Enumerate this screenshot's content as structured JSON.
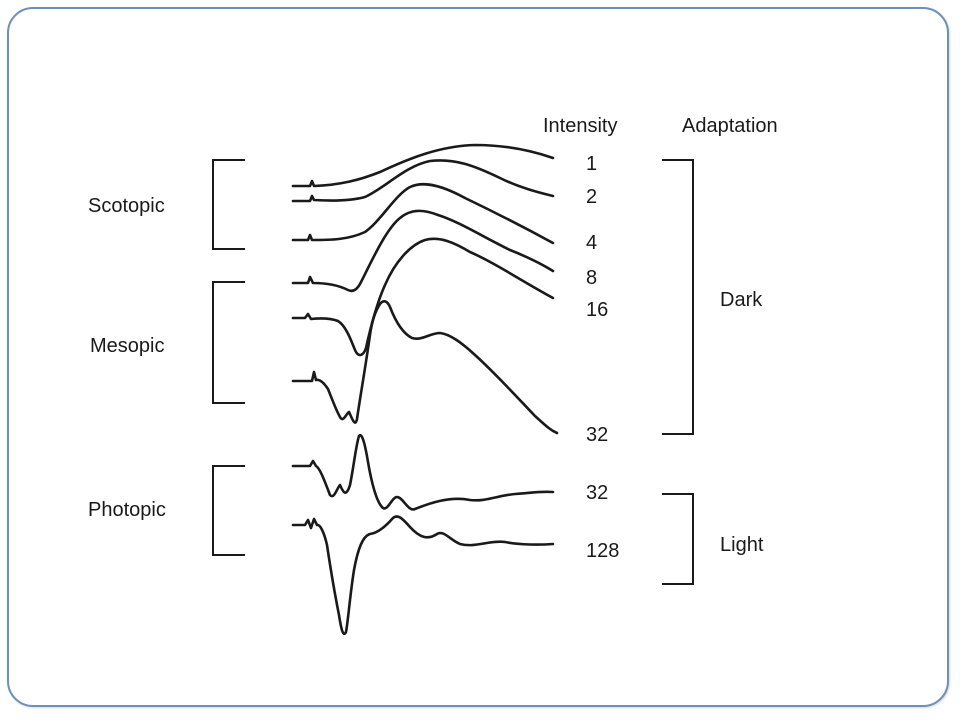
{
  "headers": {
    "intensity": "Intensity",
    "adaptation": "Adaptation"
  },
  "conditions": {
    "scotopic": "Scotopic",
    "mesopic": "Mesopic",
    "photopic": "Photopic"
  },
  "adaptation_groups": {
    "dark": "Dark",
    "light": "Light"
  },
  "intensities": [
    "1",
    "2",
    "4",
    "8",
    "16",
    "32",
    "32",
    "128"
  ]
}
